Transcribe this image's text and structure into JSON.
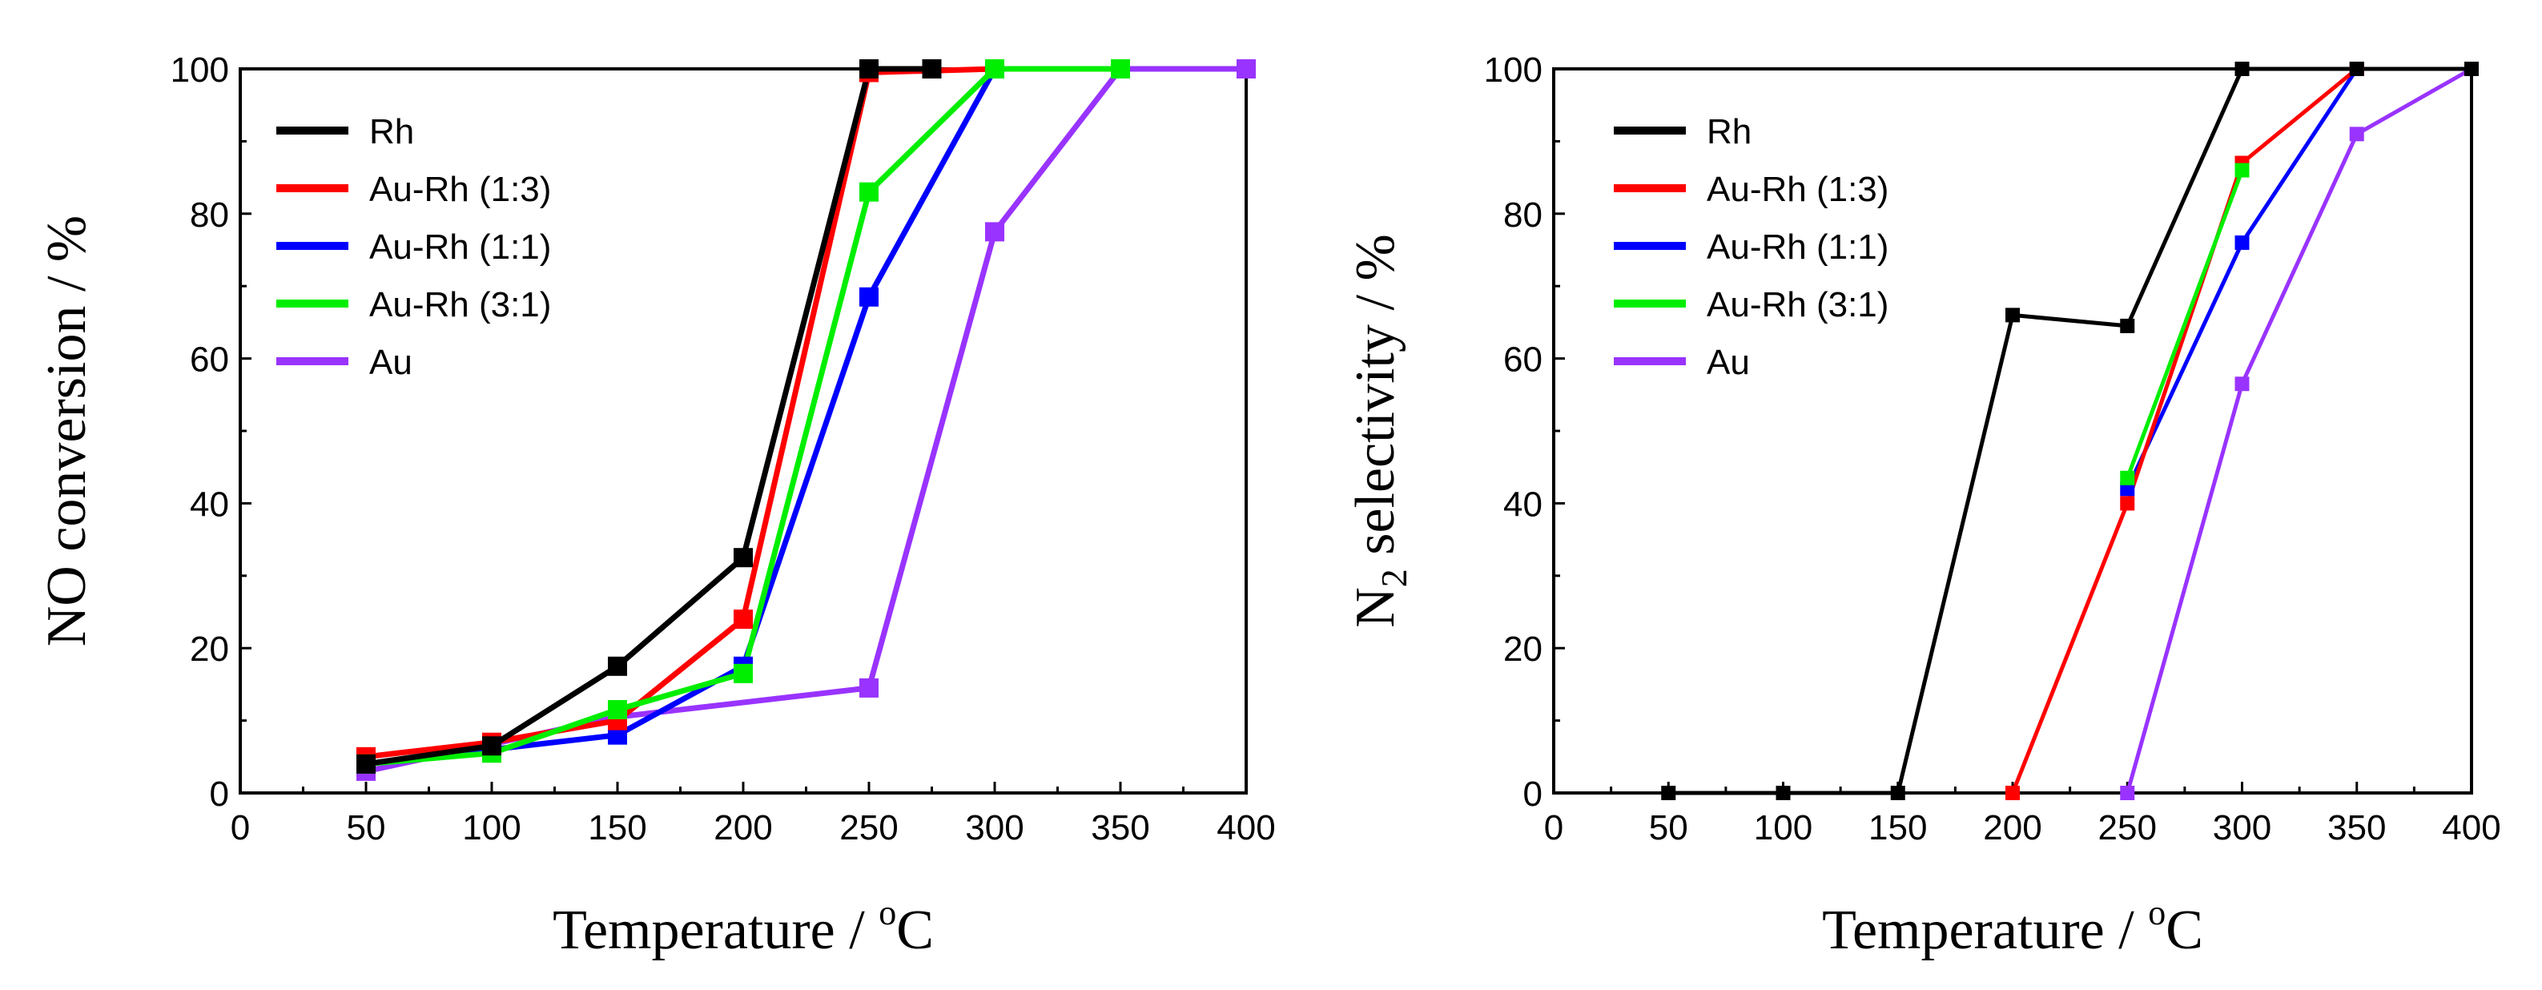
{
  "chart_data": [
    {
      "type": "line",
      "title": "",
      "xlabel": "Temperature / °C",
      "xlabel_main": "Temperature",
      "xlabel_sep": " / ",
      "xlabel_sup": "o",
      "xlabel_unit": "C",
      "ylabel": "NO conversion / %",
      "ylabel_main": "NO conversion",
      "ylabel_sep": " / ",
      "ylabel_unit": "%",
      "xlim": [
        0,
        400
      ],
      "ylim": [
        0,
        100
      ],
      "xticks": [
        "0",
        "50",
        "100",
        "150",
        "200",
        "250",
        "300",
        "350",
        "400"
      ],
      "yticks": [
        "0",
        "20",
        "40",
        "60",
        "80",
        "100"
      ],
      "legend_position": "top-left",
      "series": [
        {
          "name": "Rh",
          "color": "#000000",
          "x": [
            50,
            100,
            150,
            200,
            250,
            275
          ],
          "y": [
            4,
            6.5,
            17.5,
            32.5,
            100,
            100
          ]
        },
        {
          "name": "Au-Rh (1:3)",
          "color": "#ff0000",
          "x": [
            50,
            100,
            150,
            200,
            250,
            300
          ],
          "y": [
            5,
            7,
            10,
            24,
            99.5,
            100
          ]
        },
        {
          "name": "Au-Rh (1:1)",
          "color": "#0000ff",
          "x": [
            50,
            100,
            150,
            200,
            250,
            300
          ],
          "y": [
            4,
            6,
            8,
            17.5,
            68.5,
            100
          ]
        },
        {
          "name": "Au-Rh (3:1)",
          "color": "#00ee00",
          "x": [
            50,
            100,
            150,
            200,
            250,
            300,
            350
          ],
          "y": [
            4,
            5.5,
            11.5,
            16.5,
            83,
            100,
            100
          ]
        },
        {
          "name": "Au",
          "color": "#9933ff",
          "x": [
            50,
            150,
            250,
            300,
            350,
            400
          ],
          "y": [
            3,
            10.5,
            14.5,
            77.5,
            100,
            100
          ]
        }
      ]
    },
    {
      "type": "line",
      "title": "",
      "xlabel": "Temperature / °C",
      "xlabel_main": "Temperature",
      "xlabel_sep": " / ",
      "xlabel_sup": "o",
      "xlabel_unit": "C",
      "ylabel": "N2 selectivity / %",
      "ylabel_main": "N",
      "ylabel_sub": "2",
      "ylabel_rest": " selectivity",
      "ylabel_sep": " / ",
      "ylabel_unit": "%",
      "xlim": [
        0,
        400
      ],
      "ylim": [
        0,
        100
      ],
      "xticks": [
        "0",
        "50",
        "100",
        "150",
        "200",
        "250",
        "300",
        "350",
        "400"
      ],
      "yticks": [
        "0",
        "20",
        "40",
        "60",
        "80",
        "100"
      ],
      "legend_position": "top-left",
      "series": [
        {
          "name": "Rh",
          "color": "#000000",
          "x": [
            50,
            100,
            150,
            200,
            250,
            300,
            350,
            400
          ],
          "y": [
            0,
            0,
            0,
            66,
            64.5,
            100,
            100,
            100
          ]
        },
        {
          "name": "Au-Rh (1:3)",
          "color": "#ff0000",
          "x": [
            200,
            250,
            300,
            350
          ],
          "y": [
            0,
            40,
            87,
            100
          ]
        },
        {
          "name": "Au-Rh (1:1)",
          "color": "#0000ff",
          "x": [
            250,
            300,
            350
          ],
          "y": [
            42,
            76,
            100
          ]
        },
        {
          "name": "Au-Rh (3:1)",
          "color": "#00ee00",
          "x": [
            250,
            300
          ],
          "y": [
            43.5,
            86
          ]
        },
        {
          "name": "Au",
          "color": "#9933ff",
          "x": [
            250,
            300,
            350,
            400
          ],
          "y": [
            0,
            56.5,
            91,
            100
          ]
        }
      ]
    }
  ]
}
